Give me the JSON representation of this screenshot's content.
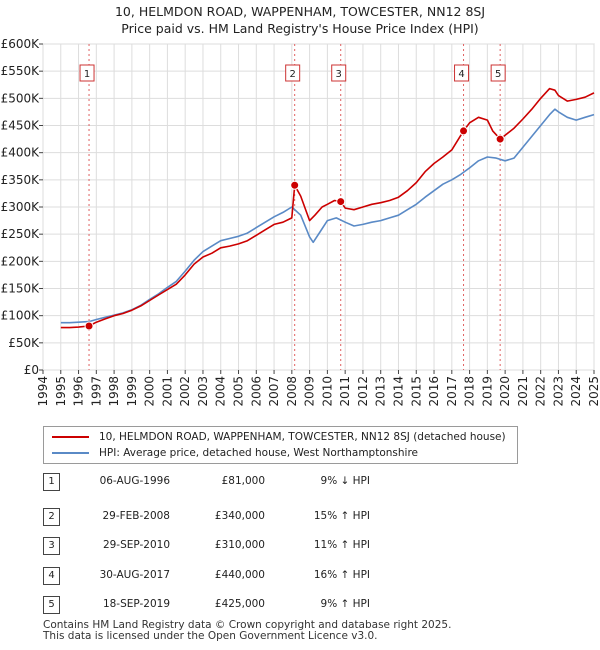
{
  "title_line1": "10, HELMDON ROAD, WAPPENHAM, TOWCESTER, NN12 8SJ",
  "title_line2": "Price paid vs. HM Land Registry's House Price Index (HPI)",
  "chart_data": {
    "type": "line",
    "title": "10, HELMDON ROAD, WAPPENHAM, TOWCESTER, NN12 8SJ — Price paid vs. HM Land Registry's House Price Index (HPI)",
    "xlabel": "",
    "ylabel": "",
    "xlim": [
      1994,
      2025
    ],
    "ylim": [
      0,
      600000
    ],
    "x_ticks": [
      1994,
      1995,
      1996,
      1997,
      1998,
      1999,
      2000,
      2001,
      2002,
      2003,
      2004,
      2005,
      2006,
      2007,
      2008,
      2009,
      2010,
      2011,
      2012,
      2013,
      2014,
      2015,
      2016,
      2017,
      2018,
      2019,
      2020,
      2021,
      2022,
      2023,
      2024,
      2025
    ],
    "y_ticks": [
      0,
      50000,
      100000,
      150000,
      200000,
      250000,
      300000,
      350000,
      400000,
      450000,
      500000,
      550000,
      600000
    ],
    "y_tick_labels": [
      "£0",
      "£50K",
      "£100K",
      "£150K",
      "£200K",
      "£250K",
      "£300K",
      "£350K",
      "£400K",
      "£450K",
      "£500K",
      "£550K",
      "£600K"
    ],
    "grid": true,
    "legend_position": "below chart",
    "series": [
      {
        "name": "10, HELMDON ROAD, WAPPENHAM, TOWCESTER, NN12 8SJ (detached house)",
        "color": "#cc0000",
        "x": [
          1995.0,
          1995.5,
          1996.0,
          1996.59,
          1997.0,
          1997.5,
          1998.0,
          1998.5,
          1999.0,
          1999.5,
          2000.0,
          2000.5,
          2001.0,
          2001.5,
          2002.0,
          2002.5,
          2003.0,
          2003.5,
          2004.0,
          2004.5,
          2005.0,
          2005.5,
          2006.0,
          2006.5,
          2007.0,
          2007.5,
          2008.0,
          2008.16,
          2008.5,
          2009.0,
          2009.3,
          2009.7,
          2010.0,
          2010.4,
          2010.75,
          2011.0,
          2011.5,
          2012.0,
          2012.5,
          2013.0,
          2013.5,
          2014.0,
          2014.5,
          2015.0,
          2015.5,
          2016.0,
          2016.5,
          2017.0,
          2017.66,
          2018.0,
          2018.5,
          2019.0,
          2019.3,
          2019.72,
          2020.0,
          2020.5,
          2021.0,
          2021.5,
          2022.0,
          2022.5,
          2022.8,
          2023.0,
          2023.5,
          2024.0,
          2024.5,
          2025.0
        ],
        "values": [
          78000,
          78000,
          79000,
          81000,
          88000,
          94000,
          100000,
          104000,
          110000,
          118000,
          128000,
          138000,
          148000,
          158000,
          175000,
          195000,
          208000,
          215000,
          225000,
          228000,
          232000,
          238000,
          248000,
          258000,
          268000,
          272000,
          280000,
          340000,
          320000,
          275000,
          285000,
          300000,
          305000,
          312000,
          310000,
          298000,
          295000,
          300000,
          305000,
          308000,
          312000,
          318000,
          330000,
          345000,
          365000,
          380000,
          392000,
          405000,
          440000,
          455000,
          465000,
          460000,
          440000,
          425000,
          432000,
          445000,
          462000,
          480000,
          500000,
          518000,
          515000,
          505000,
          495000,
          498000,
          502000,
          510000
        ]
      },
      {
        "name": "HPI: Average price, detached house, West Northamptonshire",
        "color": "#5a8ac6",
        "x": [
          1995.0,
          1995.5,
          1996.0,
          1996.59,
          1997.0,
          1997.5,
          1998.0,
          1998.5,
          1999.0,
          1999.5,
          2000.0,
          2000.5,
          2001.0,
          2001.5,
          2002.0,
          2002.5,
          2003.0,
          2003.5,
          2004.0,
          2004.5,
          2005.0,
          2005.5,
          2006.0,
          2006.5,
          2007.0,
          2007.5,
          2008.0,
          2008.5,
          2009.0,
          2009.2,
          2009.6,
          2010.0,
          2010.5,
          2011.0,
          2011.5,
          2012.0,
          2012.5,
          2013.0,
          2013.5,
          2014.0,
          2014.5,
          2015.0,
          2015.5,
          2016.0,
          2016.5,
          2017.0,
          2017.5,
          2018.0,
          2018.5,
          2019.0,
          2019.5,
          2020.0,
          2020.5,
          2021.0,
          2021.5,
          2022.0,
          2022.5,
          2022.8,
          2023.0,
          2023.5,
          2024.0,
          2024.5,
          2025.0
        ],
        "values": [
          87000,
          87000,
          88000,
          89000,
          93000,
          97000,
          101000,
          105000,
          111000,
          119000,
          130000,
          140000,
          152000,
          163000,
          182000,
          202000,
          218000,
          228000,
          238000,
          242000,
          246000,
          252000,
          262000,
          272000,
          282000,
          290000,
          300000,
          285000,
          245000,
          235000,
          255000,
          275000,
          280000,
          272000,
          265000,
          268000,
          272000,
          275000,
          280000,
          285000,
          295000,
          305000,
          318000,
          330000,
          342000,
          350000,
          360000,
          372000,
          385000,
          392000,
          390000,
          385000,
          390000,
          410000,
          430000,
          450000,
          470000,
          480000,
          475000,
          465000,
          460000,
          465000,
          470000
        ]
      }
    ],
    "sale_markers": [
      {
        "label": "1",
        "x": 1996.59,
        "value": 81000
      },
      {
        "label": "2",
        "x": 2008.16,
        "value": 340000
      },
      {
        "label": "3",
        "x": 2010.75,
        "value": 310000
      },
      {
        "label": "4",
        "x": 2017.66,
        "value": 440000
      },
      {
        "label": "5",
        "x": 2019.72,
        "value": 425000
      }
    ]
  },
  "legend": {
    "property": "10, HELMDON ROAD, WAPPENHAM, TOWCESTER, NN12 8SJ (detached house)",
    "hpi": "HPI: Average price, detached house, West Northamptonshire"
  },
  "sales": [
    {
      "num": "1",
      "date": "06-AUG-1996",
      "price": "£81,000",
      "hpi": "9% ↓ HPI"
    },
    {
      "num": "2",
      "date": "29-FEB-2008",
      "price": "£340,000",
      "hpi": "15% ↑ HPI"
    },
    {
      "num": "3",
      "date": "29-SEP-2010",
      "price": "£310,000",
      "hpi": "11% ↑ HPI"
    },
    {
      "num": "4",
      "date": "30-AUG-2017",
      "price": "£440,000",
      "hpi": "16% ↑ HPI"
    },
    {
      "num": "5",
      "date": "18-SEP-2019",
      "price": "£425,000",
      "hpi": "9% ↑ HPI"
    }
  ],
  "footer_line1": "Contains HM Land Registry data © Crown copyright and database right 2025.",
  "footer_line2": "This data is licensed under the Open Government Licence v3.0."
}
